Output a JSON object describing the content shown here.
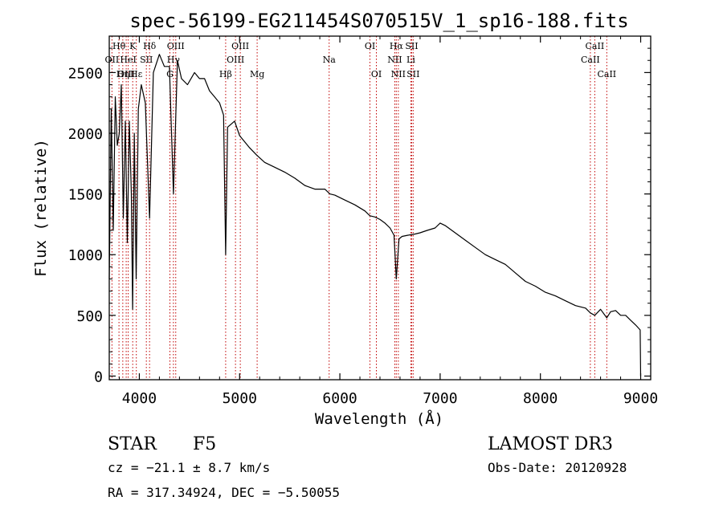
{
  "colors": {
    "spectrum": "#000000",
    "lines": "#c00000",
    "axis": "#000000"
  },
  "chart_data": {
    "type": "line",
    "title": "spec-56199-EG211454S070515V_1_sp16-188.fits",
    "xlabel": "Wavelength (Å)",
    "ylabel": "Flux (relative)",
    "xlim": [
      3700,
      9100
    ],
    "ylim": [
      -30,
      2800
    ],
    "xticks": [
      4000,
      5000,
      6000,
      7000,
      8000,
      9000
    ],
    "yticks": [
      0,
      500,
      1000,
      1500,
      2000,
      2500
    ],
    "series": [
      {
        "name": "flux",
        "x": [
          3700,
          3720,
          3740,
          3760,
          3780,
          3800,
          3820,
          3840,
          3860,
          3880,
          3900,
          3920,
          3933,
          3950,
          3968,
          3990,
          4020,
          4060,
          4102,
          4140,
          4200,
          4250,
          4300,
          4340,
          4380,
          4420,
          4480,
          4550,
          4600,
          4650,
          4700,
          4750,
          4800,
          4840,
          4861,
          4880,
          4950,
          5000,
          5100,
          5170,
          5250,
          5350,
          5450,
          5550,
          5650,
          5750,
          5850,
          5900,
          5950,
          6050,
          6150,
          6250,
          6300,
          6350,
          6400,
          6450,
          6500,
          6540,
          6563,
          6590,
          6620,
          6680,
          6750,
          6800,
          6870,
          6950,
          7000,
          7050,
          7150,
          7250,
          7350,
          7450,
          7550,
          7650,
          7750,
          7850,
          7950,
          8050,
          8150,
          8250,
          8350,
          8450,
          8498,
          8542,
          8600,
          8662,
          8700,
          8750,
          8800,
          8850,
          8900,
          8950,
          8995,
          9000
        ],
        "values": [
          800,
          2200,
          1200,
          2300,
          1900,
          2000,
          2400,
          1300,
          2100,
          1100,
          2100,
          1500,
          550,
          2000,
          800,
          2200,
          2400,
          2250,
          1300,
          2500,
          2650,
          2550,
          2550,
          1500,
          2600,
          2450,
          2400,
          2500,
          2450,
          2450,
          2350,
          2300,
          2250,
          2150,
          1000,
          2050,
          2100,
          1980,
          1880,
          1820,
          1760,
          1720,
          1680,
          1630,
          1570,
          1540,
          1540,
          1500,
          1490,
          1450,
          1410,
          1360,
          1320,
          1310,
          1290,
          1260,
          1220,
          1160,
          800,
          1130,
          1150,
          1160,
          1170,
          1180,
          1200,
          1220,
          1260,
          1240,
          1180,
          1120,
          1060,
          1000,
          960,
          920,
          850,
          780,
          740,
          690,
          660,
          620,
          580,
          560,
          520,
          500,
          550,
          480,
          530,
          540,
          500,
          500,
          460,
          420,
          380,
          0
        ]
      }
    ],
    "line_markers": [
      {
        "name": "Hθ",
        "x": 3797,
        "row": 1
      },
      {
        "name": "OII",
        "x": 3727,
        "row": 2
      },
      {
        "name": "OIII",
        "x": 3869,
        "row": 3
      },
      {
        "name": "Hη",
        "x": 3835,
        "row": 3
      },
      {
        "name": "HeI",
        "x": 3889,
        "row": 2
      },
      {
        "name": "K",
        "x": 3934,
        "row": 1
      },
      {
        "name": "SII",
        "x": 4070,
        "row": 2
      },
      {
        "name": "Hε",
        "x": 3970,
        "row": 3
      },
      {
        "name": "Hδ",
        "x": 4102,
        "row": 1
      },
      {
        "name": "OIII",
        "x": 4363,
        "row": 1
      },
      {
        "name": "Hγ",
        "x": 4340,
        "row": 2
      },
      {
        "name": "G",
        "x": 4305,
        "row": 3
      },
      {
        "name": "OIII",
        "x": 5007,
        "row": 1
      },
      {
        "name": "OIII",
        "x": 4959,
        "row": 2
      },
      {
        "name": "Hβ",
        "x": 4861,
        "row": 3
      },
      {
        "name": "Mg",
        "x": 5175,
        "row": 3
      },
      {
        "name": "Na",
        "x": 5893,
        "row": 2
      },
      {
        "name": "OI",
        "x": 6300,
        "row": 1
      },
      {
        "name": "OI",
        "x": 6364,
        "row": 3
      },
      {
        "name": "Hα",
        "x": 6563,
        "row": 1
      },
      {
        "name": "NII",
        "x": 6548,
        "row": 2
      },
      {
        "name": "NII",
        "x": 6583,
        "row": 3
      },
      {
        "name": "SII",
        "x": 6716,
        "row": 1
      },
      {
        "name": "Li",
        "x": 6708,
        "row": 2
      },
      {
        "name": "SII",
        "x": 6731,
        "row": 3
      },
      {
        "name": "CaII",
        "x": 8542,
        "row": 1
      },
      {
        "name": "CaII",
        "x": 8498,
        "row": 2
      },
      {
        "name": "CaII",
        "x": 8662,
        "row": 3
      }
    ]
  },
  "info": {
    "object_type": "STAR",
    "subclass": "F5",
    "survey": "LAMOST DR3",
    "cz": "cz = −21.1 ± 8.7 km/s",
    "obs_date": "Obs-Date: 20120928",
    "coords": "RA = 317.34924, DEC =  −5.50055"
  }
}
